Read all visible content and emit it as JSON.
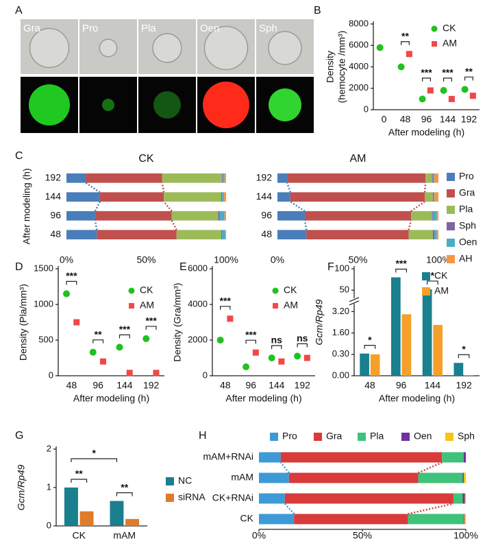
{
  "panel_a": {
    "panel": "A",
    "labels": [
      "Gra",
      "Pro",
      "Pla",
      "Oen",
      "Sph"
    ]
  },
  "chart_data": [
    {
      "type": "dot",
      "panel": "B",
      "ylabel": [
        "Density",
        "(hemocyte /mm³)"
      ],
      "xlabel": "After modeling (h)",
      "categories": [
        "0",
        "48",
        "96",
        "144",
        "192"
      ],
      "series": [
        {
          "name": "CK",
          "color": "#1fc21f",
          "marker": "circle",
          "values": [
            5800,
            4000,
            1000,
            1800,
            1900
          ]
        },
        {
          "name": "AM",
          "color": "#f04848",
          "marker": "square",
          "values": [
            null,
            5200,
            1800,
            1000,
            1300
          ]
        }
      ],
      "significance": [
        null,
        "**",
        "***",
        "***",
        "**"
      ],
      "ylim": [
        0,
        8000
      ],
      "yticks": [
        0,
        2000,
        4000,
        6000,
        8000
      ]
    },
    {
      "type": "hbar_stacked",
      "panel": "C",
      "title": "CK",
      "ylabel": "After modeling (h)",
      "categories": [
        "48",
        "96",
        "144",
        "192"
      ],
      "series": [
        {
          "name": "Pro",
          "color": "#4a7ebb",
          "values": [
            19,
            18,
            21,
            12
          ]
        },
        {
          "name": "Gra",
          "color": "#c0504d",
          "values": [
            50,
            48,
            40,
            48
          ]
        },
        {
          "name": "Pla",
          "color": "#9bbb59",
          "values": [
            28,
            29,
            36,
            37.5
          ]
        },
        {
          "name": "Sph",
          "color": "#8064a2",
          "values": [
            0.5,
            1,
            0.5,
            0.5
          ]
        },
        {
          "name": "Oen",
          "color": "#4bacc6",
          "values": [
            2,
            3,
            1,
            1
          ]
        },
        {
          "name": "AH",
          "color": "#f79646",
          "values": [
            0.5,
            1,
            1.5,
            1
          ]
        }
      ],
      "xlim": [
        0,
        100
      ],
      "xticks": [
        {
          "value": 0,
          "label": "0%"
        },
        {
          "value": 50,
          "label": "50%"
        },
        {
          "value": 100,
          "label": "100%"
        }
      ],
      "connect": "adjacent"
    },
    {
      "type": "hbar_stacked",
      "title": "AM",
      "categories": [
        "48",
        "96",
        "144",
        "192"
      ],
      "series": [
        {
          "name": "Pro",
          "color": "#4a7ebb",
          "values": [
            18,
            17,
            8,
            6
          ]
        },
        {
          "name": "Gra",
          "color": "#c0504d",
          "values": [
            63.5,
            66,
            83.5,
            86
          ]
        },
        {
          "name": "Pla",
          "color": "#9bbb59",
          "values": [
            15,
            13,
            5,
            4
          ]
        },
        {
          "name": "Sph",
          "color": "#8064a2",
          "values": [
            1,
            0.5,
            0.5,
            0.5
          ]
        },
        {
          "name": "Oen",
          "color": "#4bacc6",
          "values": [
            1.5,
            2.5,
            0.5,
            1
          ]
        },
        {
          "name": "AH",
          "color": "#f79646",
          "values": [
            1,
            1,
            2.5,
            2.5
          ]
        }
      ],
      "xlim": [
        0,
        100
      ],
      "xticks": [
        {
          "value": 0,
          "label": "0%"
        },
        {
          "value": 50,
          "label": "50%"
        },
        {
          "value": 100,
          "label": "100%"
        }
      ],
      "connect": "adjacent"
    },
    {
      "type": "dot",
      "panel": "D",
      "ylabel": "Density (Pla/mm³)",
      "xlabel": "After modeling (h)",
      "categories": [
        "48",
        "96",
        "144",
        "192"
      ],
      "series": [
        {
          "name": "CK",
          "color": "#1fc21f",
          "marker": "circle",
          "values": [
            1150,
            330,
            400,
            520
          ]
        },
        {
          "name": "AM",
          "color": "#f04848",
          "marker": "square",
          "values": [
            750,
            200,
            40,
            40
          ]
        }
      ],
      "significance": [
        "***",
        "**",
        "***",
        "***"
      ],
      "ylim": [
        0,
        1500
      ],
      "yticks": [
        0,
        500,
        1000,
        1500
      ]
    },
    {
      "type": "dot",
      "panel": "E",
      "ylabel": "Density (Gra/mm³)",
      "xlabel": "After modeling (h)",
      "categories": [
        "48",
        "96",
        "144",
        "192"
      ],
      "series": [
        {
          "name": "CK",
          "color": "#1fc21f",
          "marker": "circle",
          "values": [
            2000,
            500,
            1000,
            1100
          ]
        },
        {
          "name": "AM",
          "color": "#f04848",
          "marker": "square",
          "values": [
            3200,
            1300,
            800,
            1000
          ]
        }
      ],
      "significance": [
        "***",
        "***",
        "ns",
        "ns"
      ],
      "ylim": [
        0,
        6000
      ],
      "yticks": [
        0,
        2000,
        4000,
        6000
      ]
    },
    {
      "type": "bar",
      "panel": "F",
      "ylabel": "Gcm/Rp49",
      "ylabel_italic": true,
      "xlabel": "After modeling (h)",
      "categories": [
        "48",
        "96",
        "144",
        "192"
      ],
      "series": [
        {
          "name": "CK",
          "color": "#1a7f8e",
          "values": [
            0.35,
            80,
            52,
            0.18
          ]
        },
        {
          "name": "AM",
          "color": "#f5a02a",
          "values": [
            0.3,
            3,
            2.2,
            0.01
          ]
        }
      ],
      "significance": [
        "*",
        "***",
        "*",
        "*"
      ],
      "broken_axis": true,
      "ylim": [
        0,
        100
      ],
      "yticks": [
        {
          "value": 0,
          "label": "0.00"
        },
        {
          "value": 0.3,
          "label": "0.30"
        },
        {
          "value": 1.6,
          "label": "1.60"
        },
        {
          "value": 3.2,
          "label": "3.20"
        },
        50,
        100
      ]
    },
    {
      "type": "bar",
      "panel": "G",
      "ylabel": "Gcm/Rp49",
      "ylabel_italic": true,
      "categories": [
        "CK",
        "mAM"
      ],
      "series": [
        {
          "name": "NC",
          "color": "#1a7f8e",
          "values": [
            1.0,
            0.65
          ]
        },
        {
          "name": "siRNA",
          "color": "#e07b2a",
          "values": [
            0.38,
            0.18
          ]
        }
      ],
      "significance": [
        "**",
        "**"
      ],
      "group_significance": "*",
      "ylim": [
        0,
        2
      ],
      "yticks": [
        0,
        1,
        2
      ]
    },
    {
      "type": "hbar_stacked",
      "panel": "H",
      "categories": [
        "CK",
        "CK+RNAi",
        "mAM",
        "mAM+RNAi"
      ],
      "series": [
        {
          "name": "Pro",
          "color": "#3d9ad6",
          "values": [
            17,
            12.5,
            14.5,
            10.5
          ]
        },
        {
          "name": "Gra",
          "color": "#d93a3a",
          "values": [
            55,
            81.5,
            62.5,
            78
          ]
        },
        {
          "name": "Pla",
          "color": "#3fc27a",
          "values": [
            27,
            4.5,
            21.5,
            10.5
          ]
        },
        {
          "name": "Oen",
          "color": "#7030a0",
          "values": [
            0.3,
            1,
            0.5,
            1
          ]
        },
        {
          "name": "Sph",
          "color": "#f5c518",
          "values": [
            0.7,
            0.5,
            1,
            0
          ]
        }
      ],
      "xlim": [
        0,
        100
      ],
      "xticks": [
        {
          "value": 0,
          "label": "0%"
        },
        {
          "value": 50,
          "label": "50%"
        },
        {
          "value": 100,
          "label": "100%"
        }
      ],
      "connect": "pairs"
    }
  ]
}
